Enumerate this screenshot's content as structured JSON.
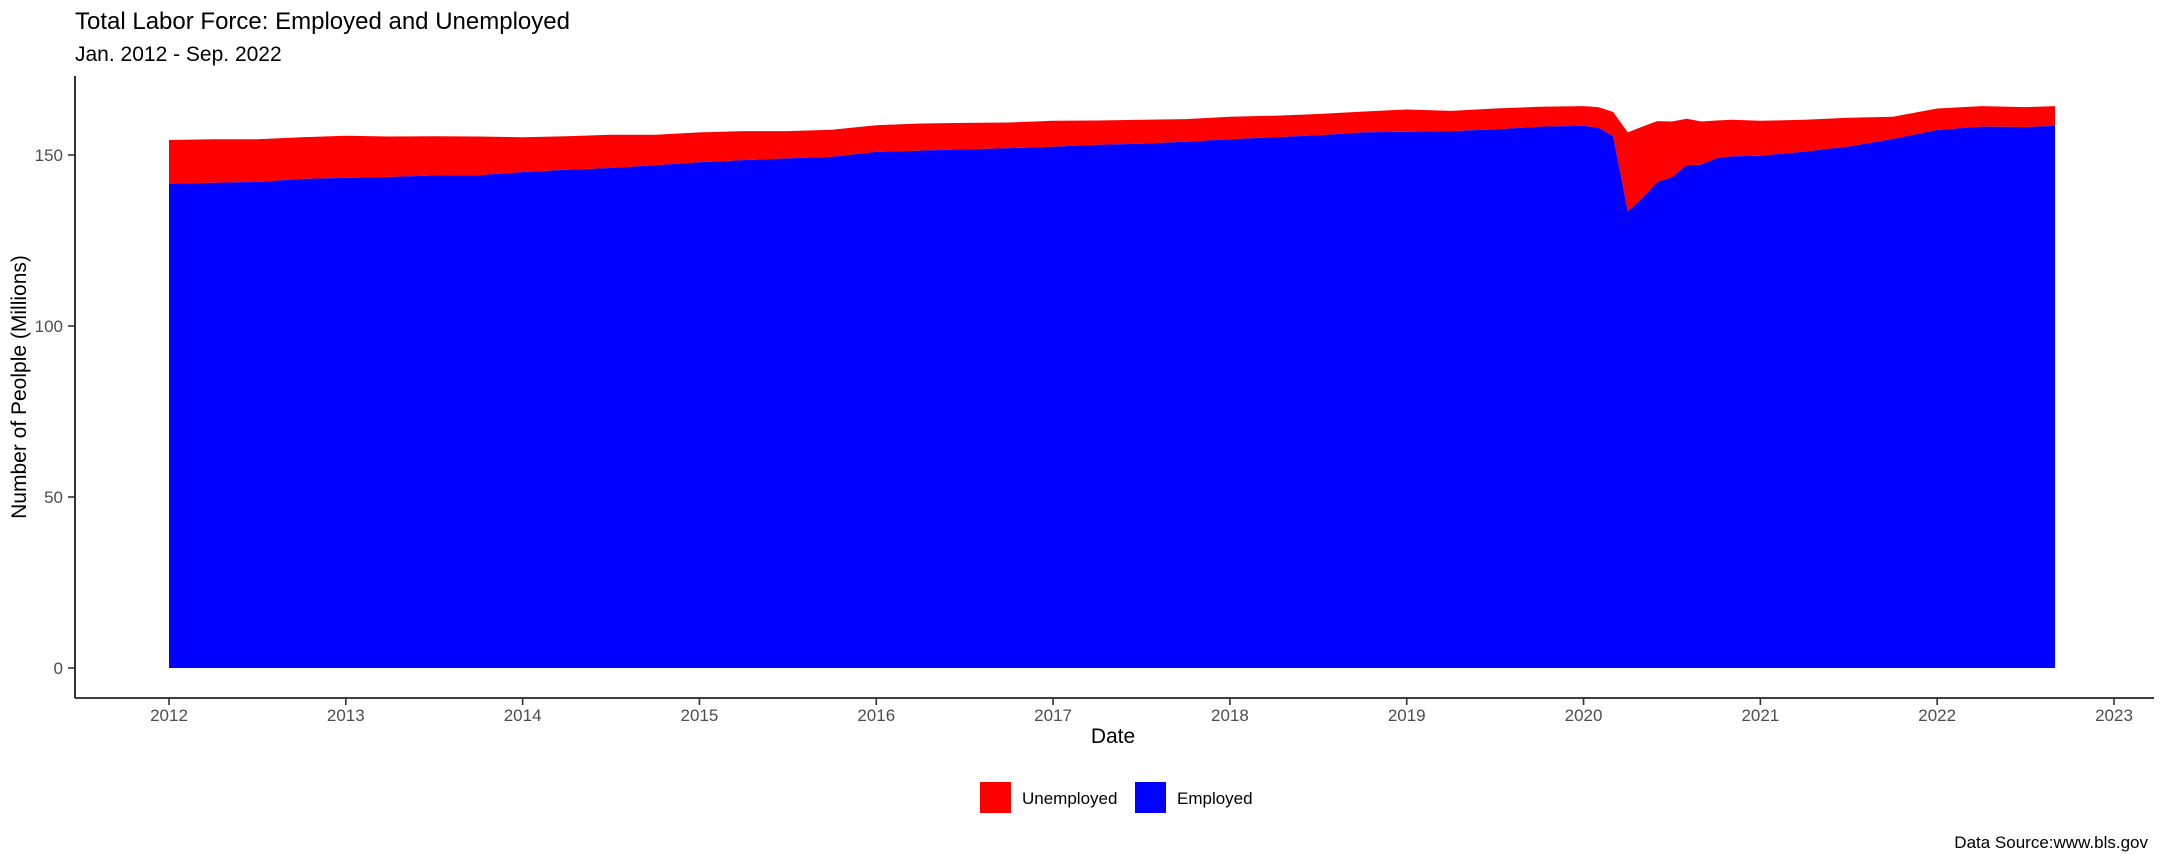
{
  "chart_data": {
    "type": "area",
    "stacked": true,
    "title": "Total Labor Force: Employed and Unemployed",
    "subtitle": "Jan. 2012 - Sep. 2022",
    "xlabel": "Date",
    "ylabel": "Number of Peolple (Millions)",
    "caption": "Data Source:www.bls.gov",
    "xlim": [
      2012,
      2023
    ],
    "ylim": [
      0,
      165
    ],
    "x_ticks": [
      "2012",
      "2013",
      "2014",
      "2015",
      "2016",
      "2017",
      "2018",
      "2019",
      "2020",
      "2021",
      "2022",
      "2023"
    ],
    "y_ticks": [
      "0",
      "50",
      "100",
      "150"
    ],
    "grid": false,
    "legend_position": "bottom",
    "legend": [
      {
        "label": "Unemployed",
        "color": "#ff0000"
      },
      {
        "label": "Employed",
        "color": "#0000ff"
      }
    ],
    "x": [
      2012.0,
      2012.25,
      2012.5,
      2012.75,
      2013.0,
      2013.25,
      2013.5,
      2013.75,
      2014.0,
      2014.25,
      2014.5,
      2014.75,
      2015.0,
      2015.25,
      2015.5,
      2015.75,
      2016.0,
      2016.25,
      2016.5,
      2016.75,
      2017.0,
      2017.25,
      2017.5,
      2017.75,
      2018.0,
      2018.25,
      2018.5,
      2018.75,
      2019.0,
      2019.25,
      2019.5,
      2019.75,
      2020.0,
      2020.083,
      2020.167,
      2020.25,
      2020.333,
      2020.417,
      2020.5,
      2020.583,
      2020.667,
      2020.75,
      2020.833,
      2021.0,
      2021.25,
      2021.5,
      2021.75,
      2022.0,
      2022.25,
      2022.5,
      2022.667
    ],
    "series": [
      {
        "name": "Employed",
        "color": "#0000ff",
        "values": [
          141.6,
          141.9,
          142.1,
          143.0,
          143.3,
          143.6,
          144.0,
          144.1,
          145.0,
          145.7,
          146.2,
          147.0,
          147.9,
          148.5,
          149.0,
          149.5,
          150.9,
          151.3,
          151.7,
          152.0,
          152.4,
          153.0,
          153.3,
          153.9,
          154.6,
          155.2,
          155.8,
          156.6,
          156.8,
          157.0,
          157.5,
          158.3,
          158.5,
          158.0,
          155.5,
          133.5,
          137.4,
          142.1,
          143.5,
          147.0,
          147.2,
          149.0,
          149.6,
          149.8,
          151.0,
          152.5,
          154.7,
          157.3,
          158.3,
          158.2,
          158.5
        ]
      },
      {
        "name": "Unemployed",
        "color": "#ff0000",
        "values": [
          12.8,
          12.7,
          12.5,
          12.2,
          12.3,
          11.8,
          11.5,
          11.3,
          10.2,
          9.8,
          9.7,
          8.9,
          8.7,
          8.5,
          8.0,
          7.9,
          7.8,
          7.9,
          7.7,
          7.5,
          7.6,
          7.1,
          7.0,
          6.6,
          6.6,
          6.3,
          6.2,
          6.1,
          6.5,
          5.9,
          6.1,
          5.8,
          5.8,
          6.0,
          7.1,
          23.1,
          20.9,
          17.8,
          16.3,
          13.6,
          12.6,
          11.1,
          10.7,
          10.2,
          9.3,
          8.4,
          6.5,
          6.3,
          6.0,
          5.8,
          5.8
        ]
      }
    ]
  }
}
